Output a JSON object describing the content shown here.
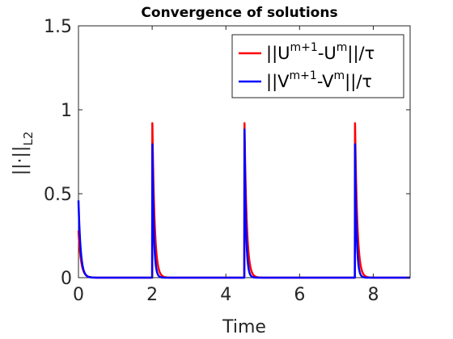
{
  "chart_data": {
    "type": "line",
    "title": "Convergence of solutions",
    "xlabel": "Time",
    "ylabel": "||·||",
    "ylabel_sub": "L2",
    "xlim": [
      0,
      9
    ],
    "ylim": [
      0,
      1.5
    ],
    "xticks": [
      "0",
      "2",
      "4",
      "6",
      "8"
    ],
    "yticks": [
      "0",
      "0.5",
      "1",
      "1.5"
    ],
    "grid": false,
    "legend_position": "top-right",
    "legend": [
      {
        "series": "U",
        "pre": "||U",
        "sup1": "m+1",
        "mid": "-U",
        "sup2": "m",
        "post": "||/τ",
        "color": "#ff0000"
      },
      {
        "series": "V",
        "pre": "||V",
        "sup1": "m+1",
        "mid": "-V",
        "sup2": "m",
        "post": "||/τ",
        "color": "#0000ff"
      }
    ],
    "series": [
      {
        "color": "#ff0000",
        "spikes": [
          {
            "t": 0.0,
            "peak": 0.28,
            "decay": 0.07
          },
          {
            "t": 2.0,
            "peak": 1.0,
            "decay": 0.06
          },
          {
            "t": 4.5,
            "peak": 1.0,
            "decay": 0.06
          },
          {
            "t": 7.5,
            "peak": 1.0,
            "decay": 0.06
          }
        ]
      },
      {
        "color": "#0000ff",
        "spikes": [
          {
            "t": 0.0,
            "peak": 0.46,
            "decay": 0.06
          },
          {
            "t": 2.0,
            "peak": 0.9,
            "decay": 0.04
          },
          {
            "t": 4.5,
            "peak": 1.0,
            "decay": 0.04
          },
          {
            "t": 7.5,
            "peak": 0.9,
            "decay": 0.04
          }
        ]
      }
    ]
  }
}
